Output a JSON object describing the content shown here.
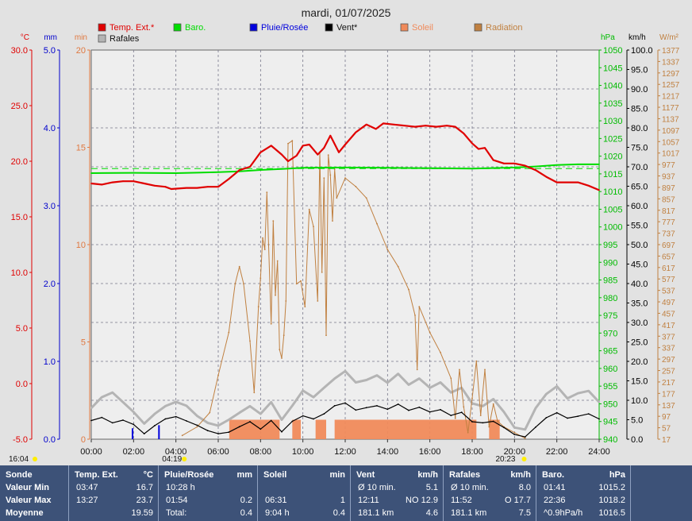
{
  "chart_data": {
    "type": "line",
    "title": "mardi, 01/07/2025",
    "x_ticks": [
      "00:00",
      "02:00",
      "04:00",
      "06:00",
      "08:00",
      "10:00",
      "12:00",
      "14:00",
      "16:00",
      "18:00",
      "20:00",
      "22:00",
      "24:00"
    ],
    "x_range": [
      0,
      24
    ],
    "legend": [
      {
        "name": "Temp. Ext.*",
        "color": "#e00000"
      },
      {
        "name": "Baro.",
        "color": "#00dd00"
      },
      {
        "name": "Pluie/Rosée",
        "color": "#0000dd"
      },
      {
        "name": "Vent*",
        "color": "#000000"
      },
      {
        "name": "Soleil",
        "color": "#f08a5a"
      },
      {
        "name": "Radiation",
        "color": "#c08040"
      },
      {
        "name": "Rafales",
        "color": "#b4b4b4"
      }
    ],
    "axes": {
      "temp": {
        "unit": "°C",
        "color": "#e00000",
        "ticks": [
          "30.0",
          "25.0",
          "20.0",
          "15.0",
          "10.0",
          "5.0",
          "0.0",
          "-5.0"
        ],
        "range": [
          -5,
          30
        ]
      },
      "rain": {
        "unit": "mm",
        "color": "#0000cc",
        "ticks": [
          "5.0",
          "4.0",
          "3.0",
          "2.0",
          "1.0",
          "0.0"
        ],
        "range": [
          0,
          5
        ]
      },
      "sun": {
        "unit": "min",
        "color": "#e07840",
        "ticks": [
          "20",
          "15",
          "10",
          "5",
          "0"
        ],
        "range": [
          0,
          20
        ]
      },
      "baro": {
        "unit": "hPa",
        "color": "#00bb00",
        "ticks": [
          "1050",
          "1045",
          "1040",
          "1035",
          "1030",
          "1025",
          "1020",
          "1015",
          "1010",
          "1005",
          "1000",
          "995",
          "990",
          "985",
          "980",
          "975",
          "970",
          "965",
          "960",
          "955",
          "950",
          "945",
          "940"
        ],
        "range": [
          940,
          1050
        ]
      },
      "wind": {
        "unit": "km/h",
        "color": "#000000",
        "ticks": [
          "100.0",
          "95.0",
          "90.0",
          "85.0",
          "80.0",
          "75.0",
          "70.0",
          "65.0",
          "60.0",
          "55.0",
          "50.0",
          "45.0",
          "40.0",
          "35.0",
          "30.0",
          "25.0",
          "20.0",
          "15.0",
          "10.0",
          "5.0",
          "0.0"
        ],
        "range": [
          0,
          100
        ]
      },
      "rad": {
        "unit": "W/m²",
        "color": "#c08040",
        "ticks": [
          "1377",
          "1337",
          "1297",
          "1257",
          "1217",
          "1177",
          "1137",
          "1097",
          "1057",
          "1017",
          "977",
          "937",
          "897",
          "857",
          "817",
          "777",
          "737",
          "697",
          "657",
          "617",
          "577",
          "537",
          "497",
          "457",
          "417",
          "377",
          "337",
          "297",
          "257",
          "217",
          "177",
          "137",
          "97",
          "57",
          "17"
        ],
        "range": [
          17,
          1377
        ]
      }
    },
    "series": [
      {
        "name": "Temp. Ext.*",
        "axis": "temp",
        "x": [
          0,
          0.5,
          1,
          1.5,
          2,
          2.5,
          3,
          3.5,
          3.78,
          4.5,
          5,
          5.5,
          6,
          6.5,
          7,
          7.5,
          8,
          8.5,
          9,
          9.3,
          9.7,
          10,
          10.3,
          10.7,
          11,
          11.3,
          11.7,
          12,
          12.5,
          13,
          13.45,
          13.8,
          14.3,
          14.8,
          15.3,
          15.8,
          16.3,
          16.8,
          17.2,
          17.6,
          18,
          18.3,
          18.6,
          19,
          19.5,
          20,
          20.5,
          21,
          21.5,
          22,
          22.5,
          23,
          23.5,
          24
        ],
        "y": [
          18.0,
          17.9,
          18.1,
          18.2,
          18.2,
          18.0,
          17.8,
          17.7,
          17.5,
          17.6,
          17.6,
          17.7,
          17.7,
          18.4,
          19.2,
          19.5,
          20.8,
          21.4,
          20.6,
          20.0,
          20.5,
          21.4,
          21.5,
          20.6,
          21.2,
          22.3,
          20.8,
          21.5,
          22.6,
          23.3,
          22.9,
          23.4,
          23.3,
          23.2,
          23.1,
          23.2,
          23.1,
          23.2,
          23.1,
          22.5,
          21.6,
          21.1,
          21.2,
          20.1,
          19.8,
          19.8,
          19.6,
          19.2,
          18.6,
          18.1,
          18.1,
          18.1,
          17.8,
          17.4
        ]
      },
      {
        "name": "Baro.",
        "axis": "baro",
        "x": [
          0,
          2,
          4,
          6,
          7,
          8,
          9,
          10,
          12,
          14,
          16,
          18,
          20,
          21,
          22,
          23,
          24
        ],
        "y": [
          1015.2,
          1015.3,
          1015.2,
          1015.5,
          1015.7,
          1016.1,
          1016.4,
          1016.7,
          1016.8,
          1016.7,
          1016.6,
          1016.5,
          1016.8,
          1017.1,
          1017.5,
          1017.7,
          1017.7
        ]
      },
      {
        "name": "Vent*",
        "axis": "wind",
        "x": [
          0,
          0.5,
          1,
          1.5,
          2,
          2.5,
          3,
          3.5,
          4,
          4.5,
          5,
          5.5,
          6,
          6.5,
          7,
          7.5,
          8,
          8.5,
          9,
          9.5,
          10,
          10.5,
          11,
          11.5,
          12,
          12.5,
          13,
          13.5,
          14,
          14.5,
          15,
          15.5,
          16,
          16.5,
          17,
          17.5,
          18,
          18.5,
          19,
          19.5,
          20,
          20.5,
          21,
          21.5,
          22,
          22.5,
          23,
          23.5,
          24
        ],
        "y": [
          4.8,
          5.6,
          4.2,
          4.9,
          3.8,
          1.4,
          3.5,
          5.2,
          5.8,
          4.7,
          3.6,
          2.2,
          1.4,
          1.8,
          3.2,
          4.5,
          2.6,
          4.8,
          1.9,
          4.6,
          6.0,
          5.2,
          6.5,
          8.6,
          9.3,
          7.5,
          8.1,
          8.6,
          7.7,
          9.0,
          7.4,
          8.2,
          7.0,
          7.6,
          6.1,
          6.9,
          4.5,
          4.2,
          4.6,
          3.0,
          1.2,
          0.6,
          3.1,
          5.5,
          6.8,
          5.4,
          5.9,
          6.5,
          5.2
        ]
      },
      {
        "name": "Rafales",
        "axis": "wind",
        "x": [
          0,
          0.5,
          1,
          1.5,
          2,
          2.5,
          3,
          3.5,
          4,
          4.5,
          5,
          5.5,
          6,
          6.5,
          7,
          7.5,
          8,
          8.5,
          9,
          9.5,
          10,
          10.5,
          11,
          11.5,
          12,
          12.5,
          13,
          13.5,
          14,
          14.5,
          15,
          15.5,
          16,
          16.5,
          17,
          17.5,
          18,
          18.5,
          19,
          19.5,
          20,
          20.5,
          21,
          21.5,
          22,
          22.5,
          23,
          23.5,
          24
        ],
        "y": [
          8.0,
          10.8,
          12.0,
          9.5,
          7.0,
          4.0,
          6.5,
          8.5,
          9.6,
          8.6,
          6.0,
          4.2,
          3.5,
          5.0,
          6.8,
          8.5,
          6.5,
          9.5,
          5.0,
          8.6,
          12.5,
          10.8,
          13.2,
          15.6,
          17.5,
          14.6,
          15.2,
          16.4,
          14.5,
          16.8,
          14.0,
          15.6,
          13.2,
          14.6,
          12.0,
          13.2,
          9.2,
          8.5,
          10.3,
          7.0,
          3.0,
          2.5,
          8.0,
          11.6,
          13.6,
          10.5,
          11.8,
          12.4,
          9.5
        ]
      },
      {
        "name": "Radiation",
        "axis": "rad",
        "x": [
          4.3,
          5,
          5.6,
          6,
          6.5,
          6.8,
          7,
          7.2,
          7.5,
          7.7,
          7.9,
          8.0,
          8.1,
          8.2,
          8.3,
          8.5,
          8.6,
          8.7,
          8.8,
          8.9,
          9.0,
          9.1,
          9.2,
          9.3,
          9.5,
          9.7,
          9.9,
          10.1,
          10.3,
          10.5,
          10.7,
          10.8,
          10.9,
          11.0,
          11.1,
          11.2,
          11.3,
          11.4,
          11.5,
          11.6,
          12.0,
          12.5,
          13,
          13.5,
          14,
          14.5,
          15,
          15.3,
          15.4,
          15.5,
          16,
          16.5,
          17,
          17.2,
          17.4,
          17.6,
          17.8,
          18.0,
          18.2,
          18.4,
          18.6,
          18.8,
          19.0,
          19.2,
          19.5,
          20,
          20.5
        ],
        "y": [
          30,
          60,
          110,
          240,
          390,
          560,
          620,
          560,
          360,
          180,
          480,
          580,
          720,
          680,
          880,
          420,
          780,
          520,
          640,
          330,
          300,
          380,
          500,
          1050,
          1060,
          560,
          570,
          480,
          820,
          760,
          500,
          1020,
          600,
          930,
          380,
          1010,
          940,
          780,
          960,
          860,
          930,
          900,
          860,
          770,
          680,
          620,
          540,
          450,
          260,
          480,
          390,
          320,
          230,
          90,
          260,
          130,
          40,
          160,
          290,
          100,
          260,
          60,
          140,
          80,
          60,
          40,
          20
        ]
      }
    ],
    "rain_events": [
      {
        "x": 1.95,
        "y": 0.14
      },
      {
        "x": 3.2,
        "y": 0.18
      }
    ],
    "sunshine": {
      "intervals": [
        [
          6.52,
          8.9
        ],
        [
          9.5,
          9.9
        ],
        [
          10.6,
          11.1
        ],
        [
          11.5,
          18.2
        ],
        [
          18.8,
          19.3
        ]
      ],
      "value": 1
    },
    "baro_mean": 1016.5,
    "time_markers": [
      {
        "label": "16:04",
        "x": 0.0,
        "row": "top"
      },
      {
        "label": "04:19",
        "x": 4.32,
        "row": "bottom"
      },
      {
        "label": "20:23",
        "x": 20.38,
        "row": "top"
      }
    ]
  },
  "stats": {
    "row_labels": [
      "Sonde",
      "Valeur Min",
      "Valeur Max",
      "Moyenne"
    ],
    "temp": {
      "title": "Temp. Ext.",
      "unit": "°C",
      "rows": [
        [
          "03:47",
          "16.7"
        ],
        [
          "13:27",
          "23.7"
        ],
        [
          "",
          "19.59"
        ]
      ]
    },
    "rain": {
      "title": "Pluie/Rosée",
      "unit": "mm",
      "rows": [
        [
          "10:28 h",
          ""
        ],
        [
          "01:54",
          "0.2"
        ],
        [
          "Total:",
          "0.4"
        ]
      ]
    },
    "sun": {
      "title": "Soleil",
      "unit": "min",
      "rows": [
        [
          "",
          ""
        ],
        [
          "06:31",
          "1"
        ],
        [
          "9:04 h",
          "0.4"
        ]
      ]
    },
    "wind": {
      "title": "Vent",
      "unit": "km/h",
      "rows": [
        [
          "Ø 10 min.",
          "5.1"
        ],
        [
          "12:11",
          "NO 12.9"
        ],
        [
          "181.1 km",
          "4.6"
        ]
      ]
    },
    "gust": {
      "title": "Rafales",
      "unit": "km/h",
      "rows": [
        [
          "Ø 10 min.",
          "8.0"
        ],
        [
          "11:52",
          "O 17.7"
        ],
        [
          "181.1 km",
          "7.5"
        ]
      ]
    },
    "baro": {
      "title": "Baro.",
      "unit": "hPa",
      "rows": [
        [
          "01:41",
          "1015.2"
        ],
        [
          "22:36",
          "1018.2"
        ],
        [
          "^0.9hPa/h",
          "1016.5"
        ]
      ]
    }
  }
}
